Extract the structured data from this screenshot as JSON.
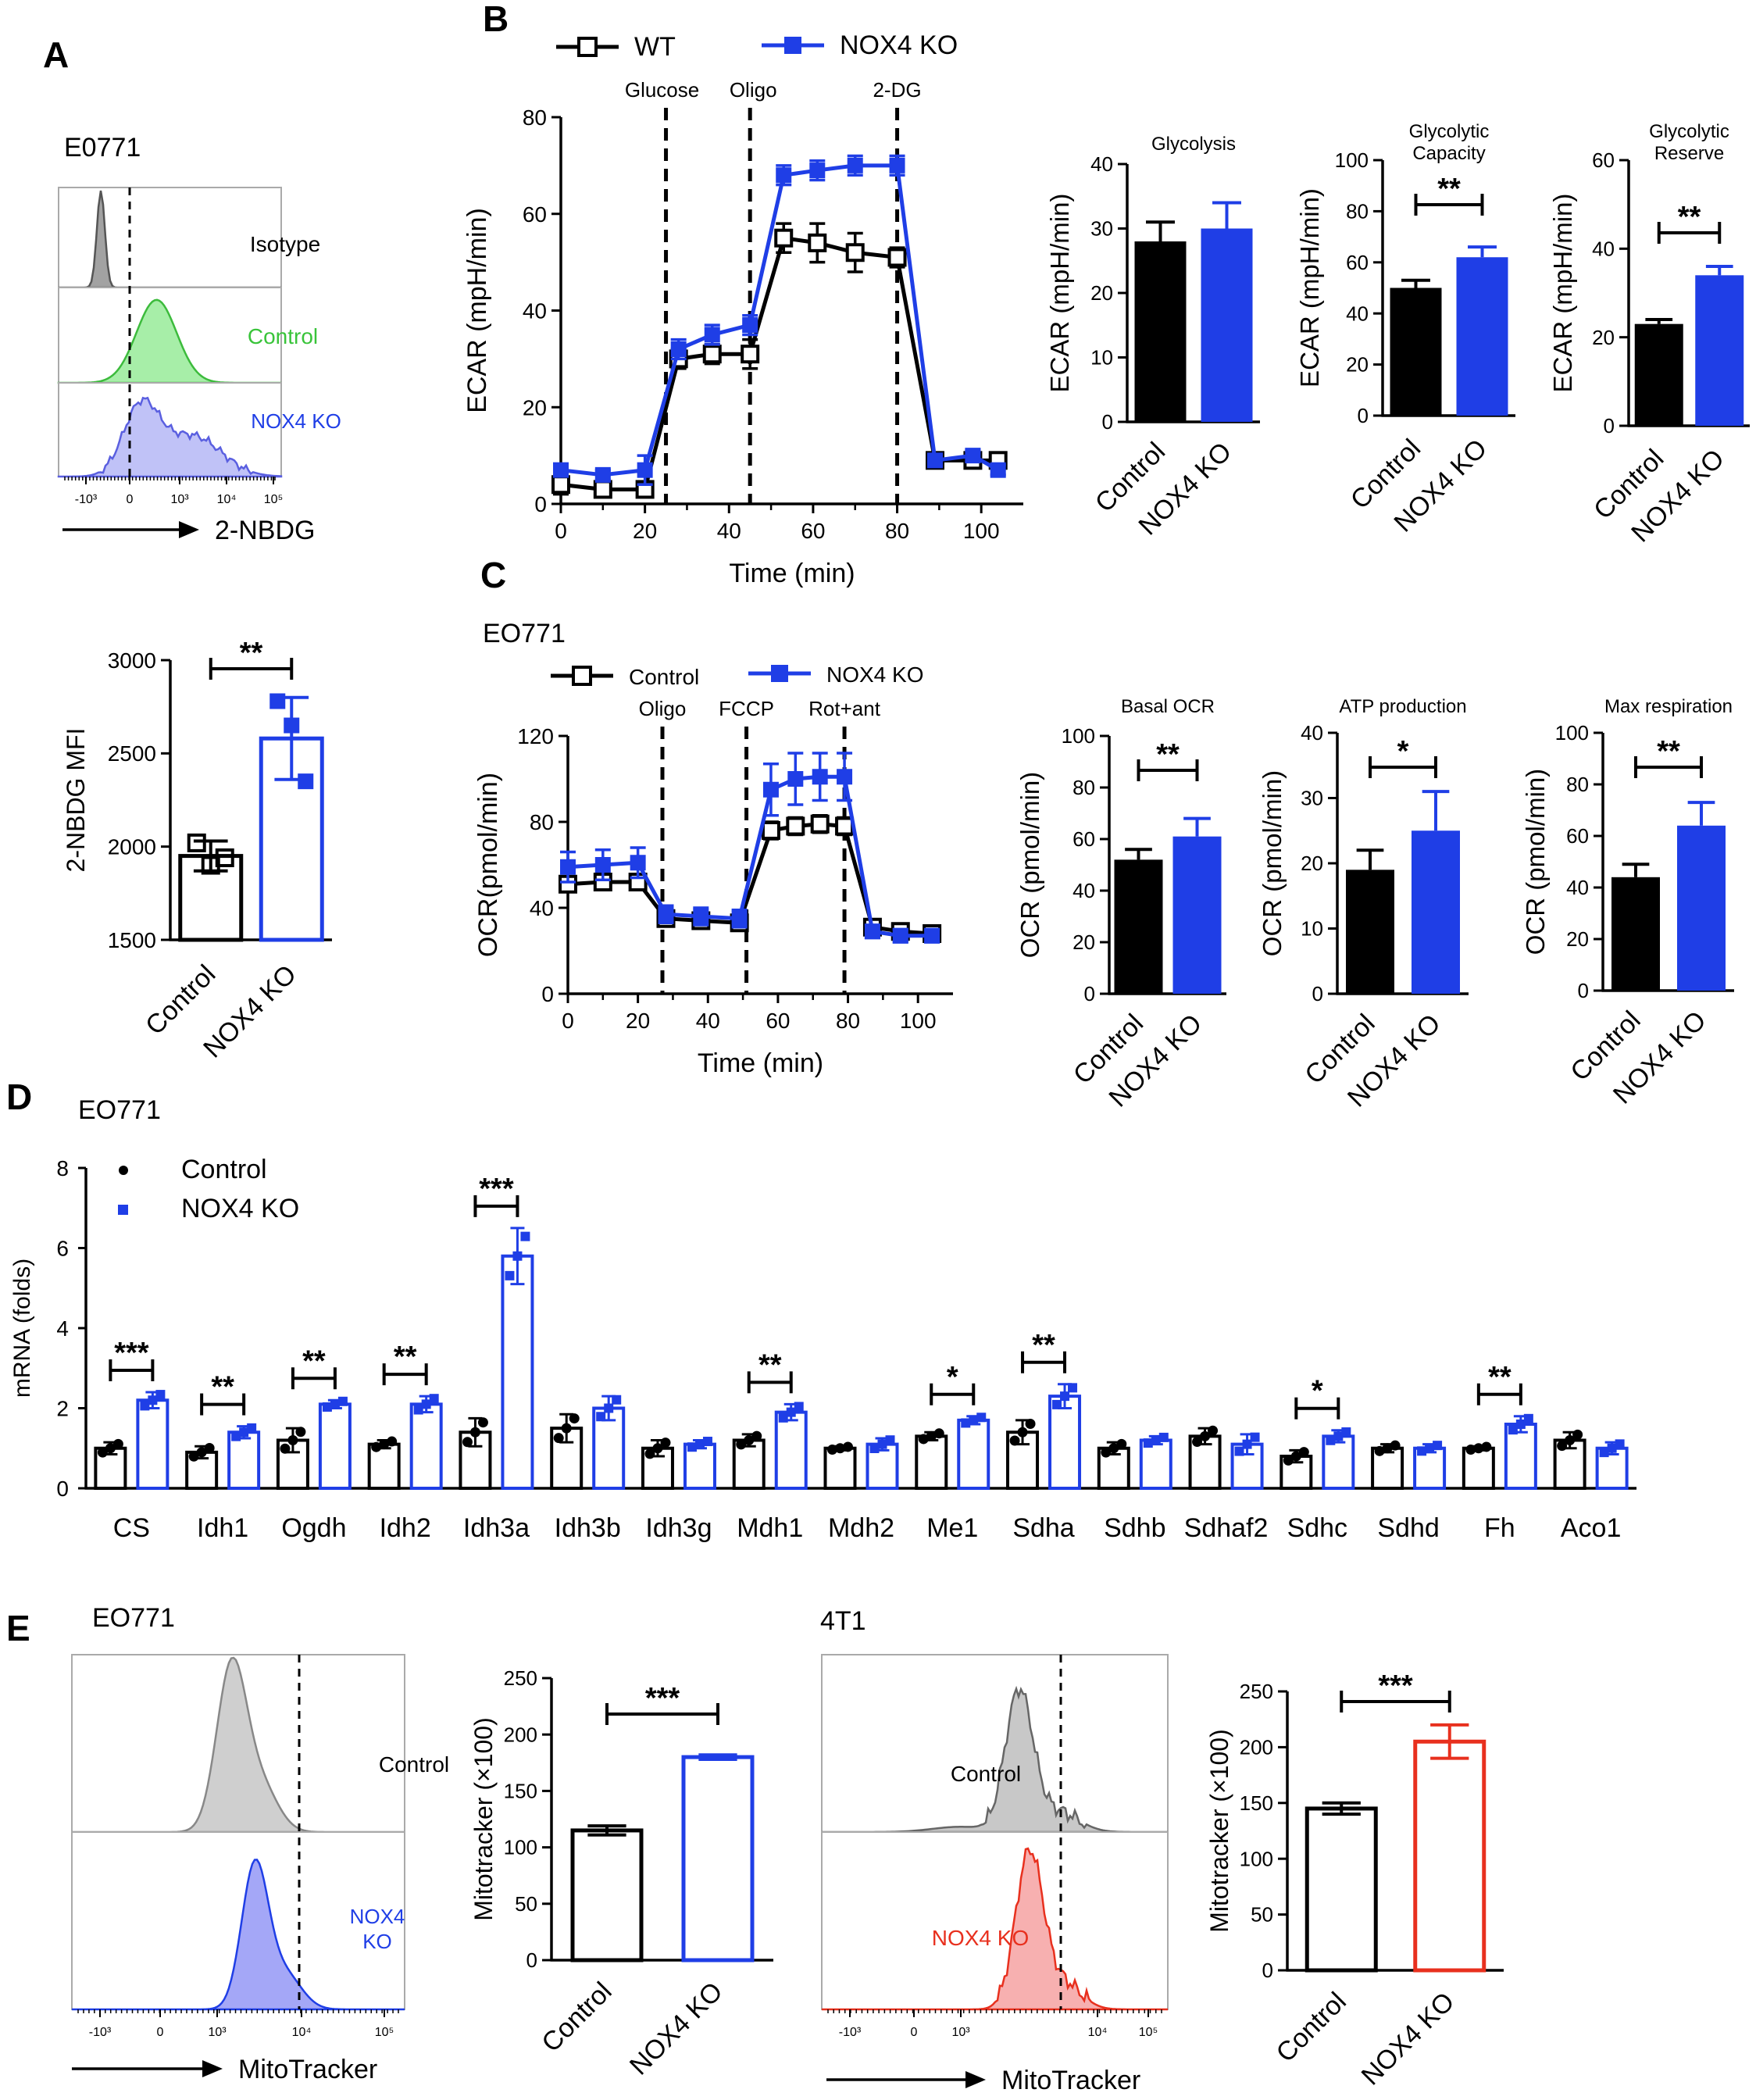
{
  "colors": {
    "control": "#000000",
    "ko": "#1f3ee6",
    "red": "#e8301e",
    "green": "#6fe070",
    "gray": "#a8a8a8",
    "purple": "#8d8ff0"
  },
  "panels": {
    "A": "A",
    "B": "B",
    "C": "C",
    "D": "D",
    "E": "E"
  },
  "panelA": {
    "cell_line": "E0771",
    "hist_labels": [
      "Isotype",
      "Control",
      "NOX4 KO"
    ],
    "x_axis_label": "2-NBDG",
    "x_ticks": [
      "-10³",
      "0",
      "10³",
      "10⁴",
      "10⁵"
    ],
    "chart_data": {
      "type": "bar",
      "title": "",
      "ylabel": "2-NBDG MFI",
      "categories": [
        "Control",
        "NOX4 KO"
      ],
      "values": [
        1950,
        2580
      ],
      "errors": [
        80,
        220
      ],
      "points": [
        [
          2020,
          1900,
          1940
        ],
        [
          2780,
          2650,
          2350
        ]
      ],
      "ylim": [
        1500,
        3000
      ],
      "yticks": [
        1500,
        2000,
        2500,
        3000
      ],
      "sig": "**",
      "style": "hollow"
    }
  },
  "panelB": {
    "legend": [
      "WT",
      "NOX4 KO"
    ],
    "line_chart": {
      "type": "line",
      "xlabel": "Time (min)",
      "ylabel": "ECAR (mpH/min)",
      "xlim": [
        0,
        110
      ],
      "ylim": [
        0,
        80
      ],
      "xticks": [
        0,
        20,
        40,
        60,
        80,
        100
      ],
      "yticks": [
        0,
        20,
        40,
        60,
        80
      ],
      "injections": [
        {
          "x": 25,
          "label": "Glucose"
        },
        {
          "x": 45,
          "label": "Oligo"
        },
        {
          "x": 80,
          "label": "2-DG"
        }
      ],
      "x": [
        0,
        10,
        20,
        28,
        36,
        45,
        53,
        61,
        70,
        80,
        89,
        98,
        104
      ],
      "series": [
        {
          "name": "WT",
          "values": [
            4,
            3,
            3,
            30,
            31,
            31,
            55,
            54,
            52,
            51,
            9,
            9,
            9
          ],
          "errors": [
            2,
            1,
            1,
            2,
            2,
            3,
            3,
            4,
            4,
            2,
            1,
            1,
            1
          ]
        },
        {
          "name": "NOX4 KO",
          "values": [
            7,
            6,
            7,
            32,
            35,
            37,
            68,
            69,
            70,
            70,
            9,
            10,
            7
          ],
          "errors": [
            1,
            1,
            3,
            2,
            2,
            2,
            2,
            2,
            2,
            2,
            1,
            1,
            1
          ]
        }
      ]
    },
    "bars": [
      {
        "type": "bar",
        "title": "Glycolysis",
        "ylabel": "ECAR (mpH/min)",
        "categories": [
          "Control",
          "NOX4 KO"
        ],
        "values": [
          28,
          30
        ],
        "errors": [
          3,
          4
        ],
        "ylim": [
          0,
          40
        ],
        "yticks": [
          0,
          10,
          20,
          30,
          40
        ],
        "sig": ""
      },
      {
        "type": "bar",
        "title": "Glycolytic Capacity",
        "title_lines": [
          "Glycolytic",
          "Capacity"
        ],
        "ylabel": "ECAR (mpH/min)",
        "categories": [
          "Control",
          "NOX4 KO"
        ],
        "values": [
          50,
          62
        ],
        "errors": [
          3,
          4
        ],
        "ylim": [
          0,
          100
        ],
        "yticks": [
          0,
          20,
          40,
          60,
          80,
          100
        ],
        "sig": "**"
      },
      {
        "type": "bar",
        "title": "Glycolytic Reserve",
        "title_lines": [
          "Glycolytic",
          "Reserve"
        ],
        "ylabel": "ECAR (mpH/min)",
        "categories": [
          "Control",
          "NOX4 KO"
        ],
        "values": [
          23,
          34
        ],
        "errors": [
          1,
          2
        ],
        "ylim": [
          0,
          60
        ],
        "yticks": [
          0,
          20,
          40,
          60
        ],
        "sig": "**"
      }
    ]
  },
  "panelC": {
    "cell_line": "EO771",
    "legend": [
      "Control",
      "NOX4 KO"
    ],
    "line_chart": {
      "type": "line",
      "xlabel": "Time (min)",
      "ylabel": "OCR(pmol/min)",
      "xlim": [
        0,
        110
      ],
      "ylim": [
        0,
        120
      ],
      "xticks": [
        0,
        20,
        40,
        60,
        80,
        100
      ],
      "yticks": [
        0,
        40,
        80,
        120
      ],
      "injections": [
        {
          "x": 27,
          "label": "Oligo"
        },
        {
          "x": 51,
          "label": "FCCP"
        },
        {
          "x": 79,
          "label": "Rot+ant"
        }
      ],
      "x": [
        0,
        10,
        20,
        28,
        38,
        49,
        58,
        65,
        72,
        79,
        87,
        95,
        104
      ],
      "series": [
        {
          "name": "Control",
          "values": [
            51,
            52,
            52,
            35,
            34,
            33,
            76,
            78,
            79,
            78,
            31,
            29,
            28
          ],
          "errors": [
            3,
            3,
            3,
            2,
            2,
            2,
            4,
            4,
            4,
            4,
            2,
            2,
            2
          ]
        },
        {
          "name": "NOX4 KO",
          "values": [
            59,
            60,
            61,
            37,
            36,
            35,
            95,
            100,
            101,
            101,
            29,
            27,
            27
          ],
          "errors": [
            7,
            7,
            7,
            4,
            4,
            4,
            12,
            12,
            11,
            11,
            3,
            3,
            3
          ]
        }
      ]
    },
    "bars": [
      {
        "type": "bar",
        "title": "Basal OCR",
        "ylabel": "OCR (pmol/min)",
        "categories": [
          "Control",
          "NOX4 KO"
        ],
        "values": [
          52,
          61
        ],
        "errors": [
          4,
          7
        ],
        "ylim": [
          0,
          100
        ],
        "yticks": [
          0,
          20,
          40,
          60,
          80,
          100
        ],
        "sig": "**"
      },
      {
        "type": "bar",
        "title": "ATP production",
        "ylabel": "OCR (pmol/min)",
        "categories": [
          "Control",
          "NOX4 KO"
        ],
        "values": [
          19,
          25
        ],
        "errors": [
          3,
          6
        ],
        "ylim": [
          0,
          40
        ],
        "yticks": [
          0,
          10,
          20,
          30,
          40
        ],
        "sig": "*"
      },
      {
        "type": "bar",
        "title": "Max respiration",
        "ylabel": "OCR (pmol/min)",
        "categories": [
          "Control",
          "NOX4 KO"
        ],
        "values": [
          44,
          64
        ],
        "errors": [
          5,
          9
        ],
        "ylim": [
          0,
          100
        ],
        "yticks": [
          0,
          20,
          40,
          60,
          80,
          100
        ],
        "sig": "**"
      }
    ]
  },
  "panelD": {
    "cell_line": "EO771",
    "legend": [
      "Control",
      "NOX4 KO"
    ],
    "chart_data": {
      "type": "bar",
      "ylabel": "mRNA (folds)",
      "ylim": [
        0,
        8
      ],
      "yticks": [
        0,
        2,
        4,
        6,
        8
      ],
      "categories": [
        "CS",
        "Idh1",
        "Ogdh",
        "Idh2",
        "Idh3a",
        "Idh3b",
        "Idh3g",
        "Mdh1",
        "Mdh2",
        "Me1",
        "Sdha",
        "Sdhb",
        "Sdhaf2",
        "Sdhc",
        "Sdhd",
        "Fh",
        "Aco1"
      ],
      "series": [
        {
          "name": "Control",
          "values": [
            1.0,
            0.9,
            1.2,
            1.1,
            1.4,
            1.5,
            1.0,
            1.2,
            1.0,
            1.3,
            1.4,
            1.0,
            1.3,
            0.8,
            1.0,
            1.0,
            1.2
          ],
          "errors": [
            0.15,
            0.15,
            0.3,
            0.1,
            0.35,
            0.35,
            0.2,
            0.15,
            0.05,
            0.1,
            0.3,
            0.15,
            0.2,
            0.15,
            0.1,
            0.05,
            0.2
          ]
        },
        {
          "name": "NOX4 KO",
          "values": [
            2.2,
            1.4,
            2.1,
            2.1,
            5.8,
            2.0,
            1.1,
            1.9,
            1.1,
            1.7,
            2.3,
            1.2,
            1.1,
            1.3,
            1.0,
            1.6,
            1.0
          ],
          "errors": [
            0.2,
            0.15,
            0.1,
            0.2,
            0.7,
            0.3,
            0.1,
            0.2,
            0.15,
            0.1,
            0.3,
            0.1,
            0.25,
            0.15,
            0.1,
            0.2,
            0.15
          ]
        }
      ],
      "sig": [
        "***",
        "**",
        "**",
        "**",
        "***",
        "",
        "",
        "**",
        "",
        "*",
        "**",
        "",
        "",
        "*",
        "",
        "**",
        ""
      ]
    }
  },
  "panelE": {
    "left": {
      "cell_line": "EO771",
      "hist_labels": [
        "Control",
        "NOX4 KO"
      ],
      "x_axis_label": "MitoTracker",
      "x_ticks": [
        "-10³",
        "0",
        "10³",
        "10⁴",
        "10⁵"
      ],
      "chart_data": {
        "type": "bar",
        "ylabel": "Mitotracker (×100)",
        "categories": [
          "Control",
          "NOX4 KO"
        ],
        "values": [
          115,
          180
        ],
        "errors": [
          4,
          2
        ],
        "ylim": [
          0,
          250
        ],
        "yticks": [
          0,
          50,
          100,
          150,
          200,
          250
        ],
        "sig": "***",
        "style": "hollow"
      }
    },
    "right": {
      "cell_line": "4T1",
      "hist_labels": [
        "Control",
        "NOX4 KO"
      ],
      "x_axis_label": "MitoTracker",
      "x_ticks": [
        "-10³",
        "0",
        "10³",
        "10⁴",
        "10⁵"
      ],
      "chart_data": {
        "type": "bar",
        "ylabel": "Mitotracker (×100)",
        "categories": [
          "Control",
          "NOX4 KO"
        ],
        "values": [
          145,
          205
        ],
        "errors": [
          5,
          15
        ],
        "ylim": [
          0,
          250
        ],
        "yticks": [
          0,
          50,
          100,
          150,
          200,
          250
        ],
        "sig": "***",
        "style": "hollow"
      }
    }
  }
}
